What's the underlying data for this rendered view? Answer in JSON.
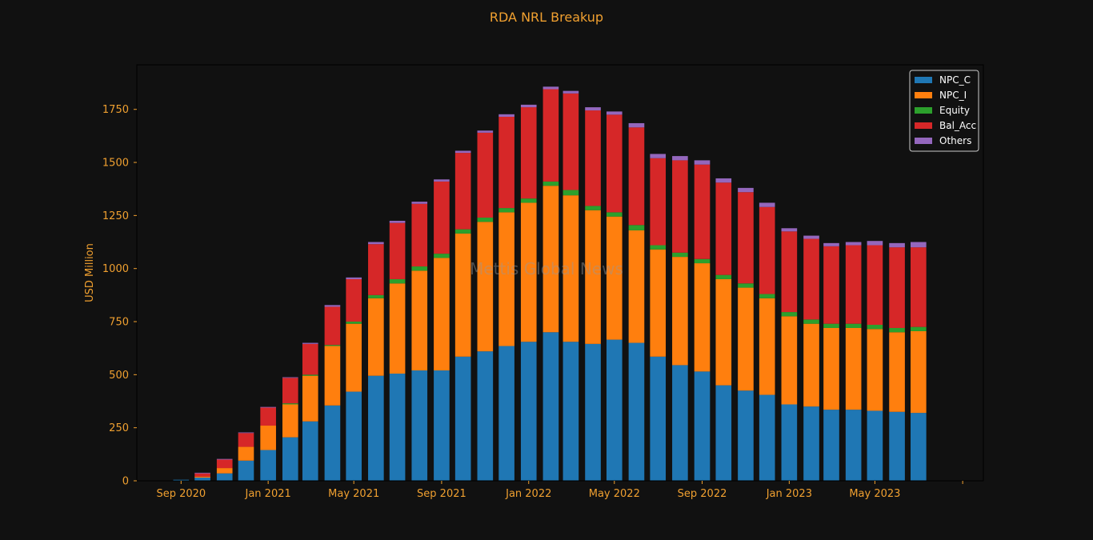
{
  "chart_data": {
    "type": "bar",
    "stacked": true,
    "title": "RDA NRL Breakup",
    "xlabel": "",
    "ylabel": "USD Million",
    "ylim": [
      0,
      1960
    ],
    "yticks": [
      0,
      250,
      500,
      750,
      1000,
      1250,
      1500,
      1750
    ],
    "xlim": [
      "2020-07-01",
      "2023-09-30"
    ],
    "xticks": [
      {
        "date": "2020-09-01",
        "label": "Sep 2020"
      },
      {
        "date": "2021-01-01",
        "label": "Jan 2021"
      },
      {
        "date": "2021-05-01",
        "label": "May 2021"
      },
      {
        "date": "2021-09-01",
        "label": "Sep 2021"
      },
      {
        "date": "2022-01-01",
        "label": "Jan 2022"
      },
      {
        "date": "2022-05-01",
        "label": "May 2022"
      },
      {
        "date": "2022-09-01",
        "label": "Sep 2022"
      },
      {
        "date": "2023-01-01",
        "label": "Jan 2023"
      },
      {
        "date": "2023-05-01",
        "label": "May 2023"
      }
    ],
    "categories": [
      "2020-09-01",
      "2020-10-01",
      "2020-11-01",
      "2020-12-01",
      "2021-01-01",
      "2021-02-01",
      "2021-03-01",
      "2021-04-01",
      "2021-05-01",
      "2021-06-01",
      "2021-07-01",
      "2021-08-01",
      "2021-09-01",
      "2021-10-01",
      "2021-11-01",
      "2021-12-01",
      "2022-01-01",
      "2022-02-01",
      "2022-03-01",
      "2022-04-01",
      "2022-05-01",
      "2022-06-01",
      "2022-07-01",
      "2022-08-01",
      "2022-09-01",
      "2022-10-01",
      "2022-11-01",
      "2022-12-01",
      "2023-01-01",
      "2023-02-01",
      "2023-03-01",
      "2023-04-01",
      "2023-05-01",
      "2023-06-01",
      "2023-07-01"
    ],
    "series": [
      {
        "name": "NPC_C",
        "color": "#1f77b4",
        "values": [
          5,
          15,
          35,
          95,
          145,
          205,
          280,
          355,
          420,
          495,
          505,
          520,
          520,
          585,
          610,
          635,
          655,
          700,
          655,
          645,
          665,
          650,
          585,
          545,
          515,
          450,
          425,
          405,
          360,
          350,
          335,
          335,
          330,
          325,
          320
        ]
      },
      {
        "name": "NPC_I",
        "color": "#ff7f0e",
        "values": [
          0,
          5,
          25,
          65,
          115,
          155,
          215,
          280,
          320,
          365,
          425,
          470,
          530,
          580,
          610,
          630,
          655,
          690,
          690,
          630,
          580,
          530,
          505,
          510,
          510,
          500,
          485,
          455,
          415,
          390,
          385,
          385,
          385,
          375,
          385
        ]
      },
      {
        "name": "Equity",
        "color": "#2ca02c",
        "values": [
          0,
          0,
          0,
          0,
          0,
          5,
          5,
          5,
          10,
          15,
          20,
          20,
          20,
          20,
          20,
          20,
          20,
          20,
          25,
          20,
          20,
          25,
          20,
          20,
          20,
          20,
          20,
          20,
          20,
          20,
          20,
          20,
          20,
          20,
          20
        ]
      },
      {
        "name": "Bal_Acc",
        "color": "#d62728",
        "values": [
          0,
          15,
          40,
          65,
          85,
          120,
          145,
          180,
          200,
          240,
          265,
          295,
          340,
          360,
          400,
          430,
          430,
          435,
          455,
          450,
          460,
          460,
          410,
          435,
          445,
          435,
          430,
          410,
          380,
          380,
          365,
          370,
          375,
          380,
          375
        ]
      },
      {
        "name": "Others",
        "color": "#9467bd",
        "values": [
          0,
          3,
          3,
          3,
          3,
          3,
          5,
          8,
          8,
          10,
          10,
          10,
          10,
          10,
          10,
          12,
          12,
          12,
          12,
          15,
          15,
          20,
          20,
          20,
          20,
          20,
          20,
          20,
          15,
          15,
          15,
          15,
          20,
          20,
          25
        ]
      }
    ],
    "legend": {
      "position": "top-right"
    },
    "watermark": "Mettis Global News",
    "grid": false
  }
}
